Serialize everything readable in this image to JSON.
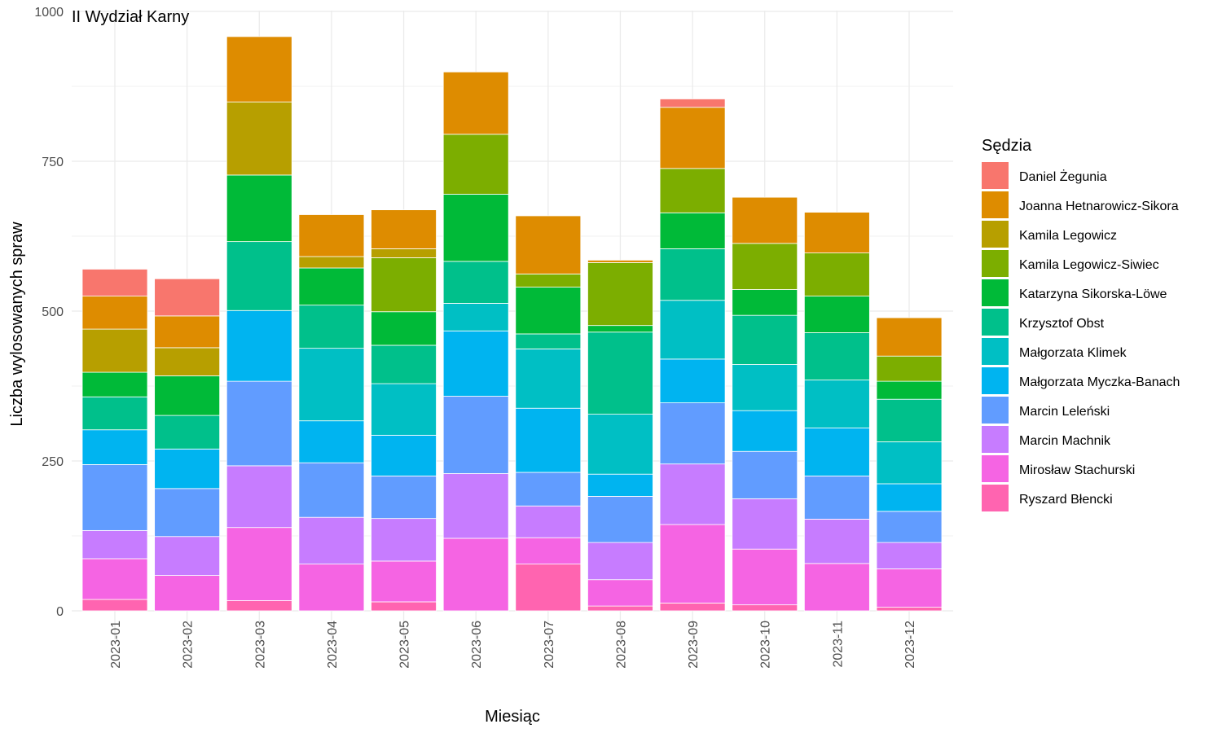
{
  "chart_data": {
    "type": "bar",
    "stacked": true,
    "title": "II Wydział Karny",
    "xlabel": "Miesiąc",
    "ylabel": "Liczba wylosowanych spraw",
    "ylim": [
      0,
      1000
    ],
    "yticks": [
      0,
      250,
      500,
      750,
      1000
    ],
    "grid": true,
    "legend_position": "right",
    "legend_title": "Sędzia",
    "categories": [
      "2023-01",
      "2023-02",
      "2023-03",
      "2023-04",
      "2023-05",
      "2023-06",
      "2023-07",
      "2023-08",
      "2023-09",
      "2023-10",
      "2023-11",
      "2023-12"
    ],
    "series": [
      {
        "name": "Daniel Żegunia",
        "color": "#F8766D",
        "values": [
          45,
          62,
          0,
          0,
          0,
          0,
          0,
          0,
          14,
          0,
          0,
          0
        ]
      },
      {
        "name": "Joanna Hetnarowicz-Sikora",
        "color": "#DE8C00",
        "values": [
          55,
          53,
          109,
          70,
          65,
          104,
          97,
          4,
          102,
          77,
          68,
          64
        ]
      },
      {
        "name": "Kamila Legowicz",
        "color": "#B79F00",
        "values": [
          72,
          47,
          122,
          19,
          15,
          0,
          0,
          0,
          0,
          0,
          0,
          0
        ]
      },
      {
        "name": "Kamila Legowicz-Siwiec",
        "color": "#7CAE00",
        "values": [
          0,
          0,
          0,
          0,
          90,
          100,
          22,
          105,
          74,
          77,
          72,
          42
        ]
      },
      {
        "name": "Katarzyna Sikorska-Löwe",
        "color": "#00BA38",
        "values": [
          41,
          66,
          111,
          62,
          56,
          112,
          78,
          11,
          60,
          43,
          61,
          30
        ]
      },
      {
        "name": "Krzysztof Obst",
        "color": "#00C08B",
        "values": [
          55,
          56,
          115,
          72,
          64,
          70,
          25,
          137,
          86,
          82,
          79,
          71
        ]
      },
      {
        "name": "Małgorzata Klimek",
        "color": "#00BFC4",
        "values": [
          0,
          0,
          0,
          121,
          86,
          46,
          99,
          100,
          98,
          77,
          80,
          70
        ]
      },
      {
        "name": "Małgorzata Myczka-Banach",
        "color": "#00B4F0",
        "values": [
          58,
          66,
          118,
          70,
          68,
          109,
          107,
          37,
          73,
          68,
          80,
          46
        ]
      },
      {
        "name": "Marcin Leleński",
        "color": "#619CFF",
        "values": [
          110,
          80,
          141,
          91,
          71,
          129,
          56,
          77,
          102,
          79,
          72,
          52
        ]
      },
      {
        "name": "Marcin Machnik",
        "color": "#C77CFF",
        "values": [
          47,
          65,
          103,
          78,
          71,
          108,
          53,
          62,
          101,
          84,
          74,
          44
        ]
      },
      {
        "name": "Mirosław Stachurski",
        "color": "#F564E3",
        "values": [
          68,
          59,
          122,
          78,
          68,
          121,
          44,
          44,
          131,
          93,
          79,
          64
        ]
      },
      {
        "name": "Ryszard Błencki",
        "color": "#FF64B0",
        "values": [
          19,
          0,
          17,
          0,
          15,
          0,
          78,
          8,
          13,
          10,
          0,
          6
        ]
      }
    ]
  }
}
